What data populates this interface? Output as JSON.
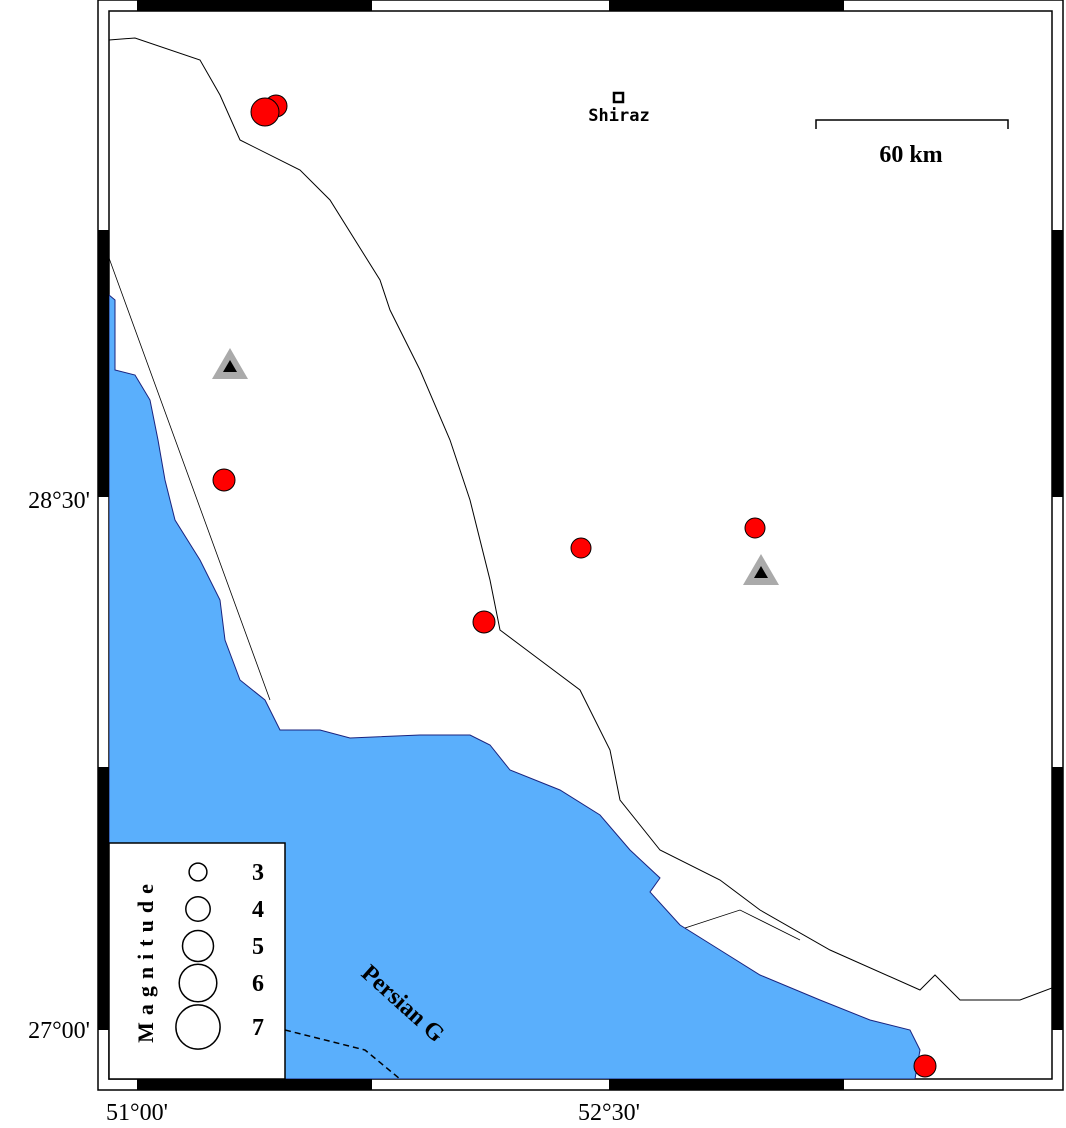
{
  "map": {
    "city": "Shiraz",
    "scale_bar": "60 km",
    "sea_label": "Persian G",
    "longitude_labels": [
      "51°00'",
      "52°30'"
    ],
    "latitude_labels": [
      "28°30'",
      "27°00'"
    ],
    "legend": {
      "title": "Magnitude",
      "magnitudes": [
        3,
        4,
        5,
        6,
        7
      ]
    }
  }
}
